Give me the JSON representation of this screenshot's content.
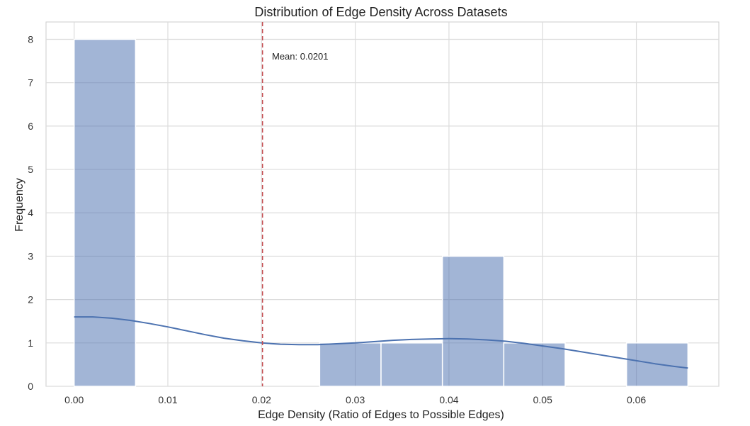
{
  "chart_data": {
    "type": "bar",
    "subtype": "histogram",
    "title": "Distribution of Edge Density Across Datasets",
    "xlabel": "Edge Density (Ratio of Edges to Possible Edges)",
    "ylabel": "Frequency",
    "xlim": [
      -0.003,
      0.0688
    ],
    "ylim": [
      0,
      8.4
    ],
    "xticks": [
      0.0,
      0.01,
      0.02,
      0.03,
      0.04,
      0.05,
      0.06
    ],
    "xtick_labels": [
      "0.00",
      "0.01",
      "0.02",
      "0.03",
      "0.04",
      "0.05",
      "0.06"
    ],
    "yticks": [
      0,
      1,
      2,
      3,
      4,
      5,
      6,
      7,
      8
    ],
    "ytick_labels": [
      "0",
      "1",
      "2",
      "3",
      "4",
      "5",
      "6",
      "7",
      "8"
    ],
    "grid": true,
    "bins": [
      {
        "start": 0.0,
        "end": 0.00655,
        "count": 8
      },
      {
        "start": 0.00655,
        "end": 0.0131,
        "count": 0
      },
      {
        "start": 0.0131,
        "end": 0.01965,
        "count": 0
      },
      {
        "start": 0.01965,
        "end": 0.0262,
        "count": 0
      },
      {
        "start": 0.0262,
        "end": 0.03275,
        "count": 1
      },
      {
        "start": 0.03275,
        "end": 0.0393,
        "count": 1
      },
      {
        "start": 0.0393,
        "end": 0.04585,
        "count": 3
      },
      {
        "start": 0.04585,
        "end": 0.0524,
        "count": 1
      },
      {
        "start": 0.0524,
        "end": 0.05895,
        "count": 0
      },
      {
        "start": 0.05895,
        "end": 0.0655,
        "count": 1
      }
    ],
    "kde": {
      "x": [
        0.0,
        0.002,
        0.004,
        0.006,
        0.008,
        0.01,
        0.012,
        0.014,
        0.016,
        0.018,
        0.02,
        0.022,
        0.024,
        0.026,
        0.028,
        0.03,
        0.032,
        0.034,
        0.036,
        0.038,
        0.04,
        0.042,
        0.044,
        0.046,
        0.048,
        0.05,
        0.052,
        0.054,
        0.056,
        0.058,
        0.06,
        0.062,
        0.064,
        0.0655
      ],
      "y": [
        1.6,
        1.6,
        1.57,
        1.52,
        1.45,
        1.37,
        1.28,
        1.19,
        1.11,
        1.05,
        1.0,
        0.97,
        0.96,
        0.96,
        0.98,
        1.0,
        1.03,
        1.06,
        1.08,
        1.09,
        1.1,
        1.09,
        1.07,
        1.04,
        0.99,
        0.93,
        0.87,
        0.8,
        0.73,
        0.66,
        0.59,
        0.52,
        0.46,
        0.42
      ]
    },
    "mean_line": {
      "x": 0.0201,
      "label": "Mean: 0.0201",
      "color": "#c44e52"
    },
    "colors": {
      "bar": "#4c72b0",
      "kde": "#4c72b0",
      "grid": "#dcdcdc",
      "background": "#ffffff"
    }
  }
}
